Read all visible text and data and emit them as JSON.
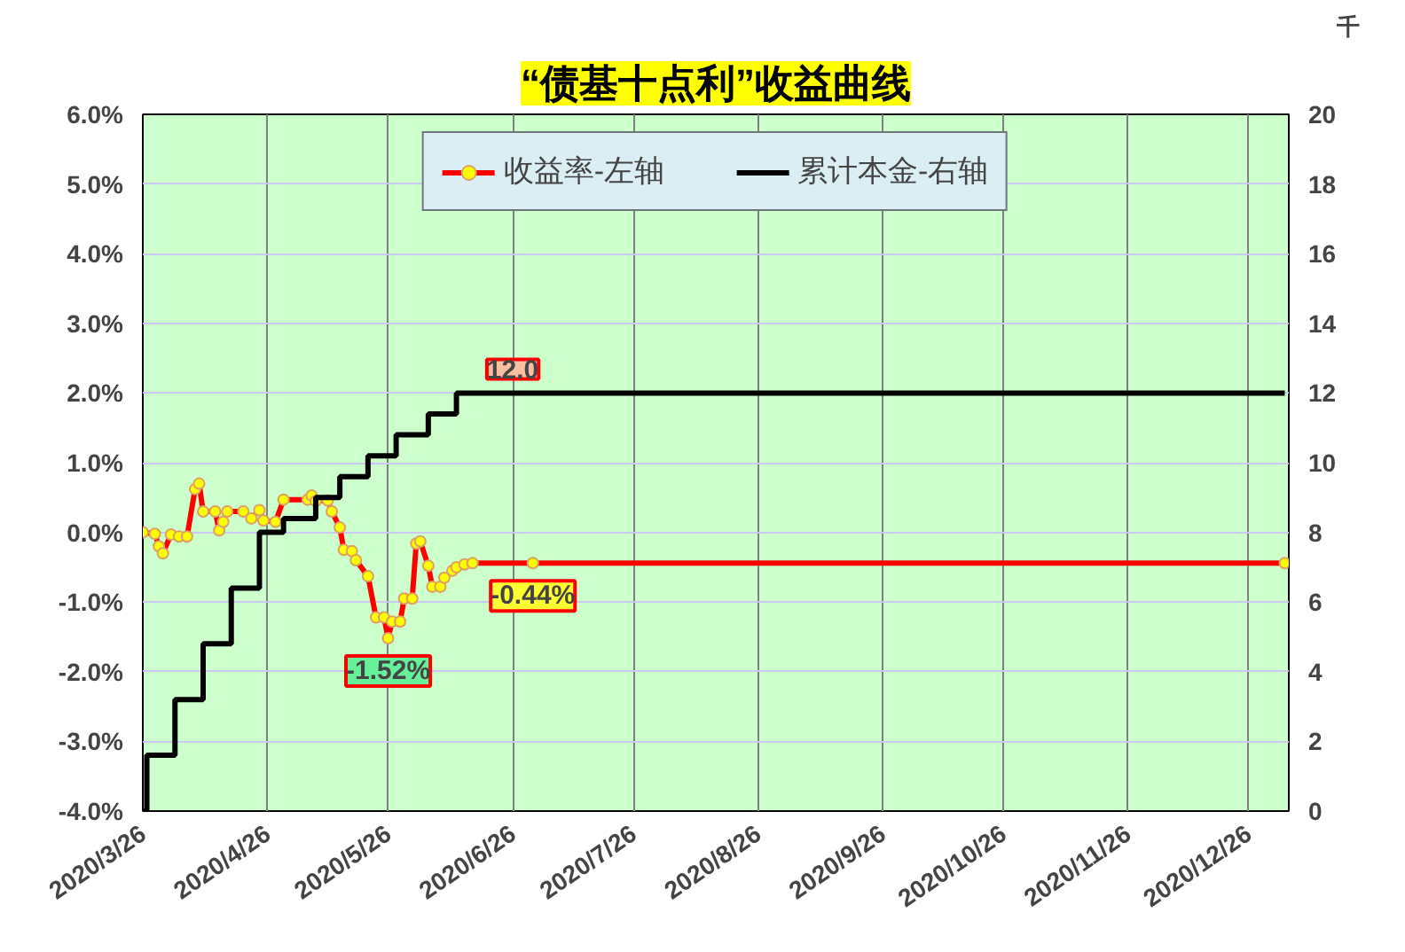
{
  "chart_data": {
    "type": "line",
    "title": "“债基十点利”收益曲线",
    "y2label": "千",
    "xlim": [
      "2020-03-26",
      "2021-01-05"
    ],
    "xticks": [
      {
        "value": "2020-03-26",
        "label": "2020/3/26"
      },
      {
        "value": "2020-04-26",
        "label": "2020/4/26"
      },
      {
        "value": "2020-05-26",
        "label": "2020/5/26"
      },
      {
        "value": "2020-06-26",
        "label": "2020/6/26"
      },
      {
        "value": "2020-07-26",
        "label": "2020/7/26"
      },
      {
        "value": "2020-08-26",
        "label": "2020/8/26"
      },
      {
        "value": "2020-09-26",
        "label": "2020/9/26"
      },
      {
        "value": "2020-10-26",
        "label": "2020/10/26"
      },
      {
        "value": "2020-11-26",
        "label": "2020/11/26"
      },
      {
        "value": "2020-12-26",
        "label": "2020/12/26"
      }
    ],
    "ylim": [
      -4,
      6
    ],
    "yticks": [
      {
        "value": -4,
        "label": "-4.0%"
      },
      {
        "value": -3,
        "label": "-3.0%"
      },
      {
        "value": -2,
        "label": "-2.0%"
      },
      {
        "value": -1,
        "label": "-1.0%"
      },
      {
        "value": 0,
        "label": "0.0%"
      },
      {
        "value": 1,
        "label": "1.0%"
      },
      {
        "value": 2,
        "label": "2.0%"
      },
      {
        "value": 3,
        "label": "3.0%"
      },
      {
        "value": 4,
        "label": "4.0%"
      },
      {
        "value": 5,
        "label": "5.0%"
      },
      {
        "value": 6,
        "label": "6.0%"
      }
    ],
    "y2lim": [
      0,
      20
    ],
    "y2ticks": [
      0,
      2,
      4,
      6,
      8,
      10,
      12,
      14,
      16,
      18,
      20
    ],
    "grid": true,
    "legend": "top",
    "marker": "circle",
    "series": [
      {
        "name": "收益率-左轴",
        "color": "#ff0000",
        "x": [
          "2020-03-26",
          "2020-03-29",
          "2020-03-30",
          "2020-03-31",
          "2020-04-02",
          "2020-04-04",
          "2020-04-06",
          "2020-04-08",
          "2020-04-09",
          "2020-04-10",
          "2020-04-13",
          "2020-04-14",
          "2020-04-15",
          "2020-04-16",
          "2020-04-20",
          "2020-04-22",
          "2020-04-24",
          "2020-04-25",
          "2020-04-28",
          "2020-04-30",
          "2020-05-06",
          "2020-05-07",
          "2020-05-08",
          "2020-05-11",
          "2020-05-12",
          "2020-05-14",
          "2020-05-15",
          "2020-05-17",
          "2020-05-18",
          "2020-05-21",
          "2020-05-23",
          "2020-05-25",
          "2020-05-26",
          "2020-05-27",
          "2020-05-29",
          "2020-05-30",
          "2020-06-01",
          "2020-06-02",
          "2020-06-03",
          "2020-06-05",
          "2020-06-06",
          "2020-06-08",
          "2020-06-09",
          "2020-06-11",
          "2020-06-12",
          "2020-06-14",
          "2020-06-16",
          "2020-07-01",
          "2021-01-04"
        ],
        "values": [
          0.0,
          -0.02,
          -0.2,
          -0.3,
          -0.03,
          -0.06,
          -0.06,
          0.62,
          0.7,
          0.3,
          0.3,
          0.03,
          0.15,
          0.3,
          0.3,
          0.2,
          0.32,
          0.17,
          0.15,
          0.47,
          0.47,
          0.53,
          0.45,
          0.46,
          0.3,
          0.07,
          -0.25,
          -0.27,
          -0.4,
          -0.63,
          -1.22,
          -1.22,
          -1.52,
          -1.28,
          -1.28,
          -0.95,
          -0.95,
          -0.16,
          -0.13,
          -0.48,
          -0.78,
          -0.78,
          -0.65,
          -0.55,
          -0.5,
          -0.46,
          -0.44,
          -0.44,
          -0.44
        ],
        "value_labels": [
          null,
          null,
          null,
          null,
          null,
          null,
          null,
          null,
          null,
          null,
          null,
          null,
          null,
          null,
          null,
          null,
          null,
          null,
          null,
          null,
          null,
          null,
          null,
          null,
          null,
          null,
          null,
          null,
          null,
          null,
          null,
          null,
          "-1.52%",
          null,
          null,
          null,
          null,
          null,
          null,
          null,
          null,
          null,
          null,
          null,
          null,
          null,
          null,
          "-0.44%",
          null
        ]
      },
      {
        "name": "累计本金-右轴",
        "type": "step",
        "marker": "none",
        "axis": "y2",
        "color": "#000000",
        "x": [
          "2020-03-26",
          "2020-03-27",
          "2020-04-03",
          "2020-04-10",
          "2020-04-17",
          "2020-04-24",
          "2020-04-30",
          "2020-05-08",
          "2020-05-14",
          "2020-05-21",
          "2020-05-28",
          "2020-06-05",
          "2020-06-12",
          "2020-06-26",
          "2021-01-04"
        ],
        "values": [
          0,
          1.6,
          3.2,
          4.8,
          6.4,
          8.0,
          8.4,
          9.0,
          9.6,
          10.2,
          10.8,
          11.4,
          12.0,
          12.0,
          12.0
        ],
        "value_labels": [
          null,
          null,
          null,
          null,
          null,
          null,
          null,
          null,
          null,
          null,
          null,
          null,
          null,
          "12.0",
          null
        ]
      }
    ]
  }
}
